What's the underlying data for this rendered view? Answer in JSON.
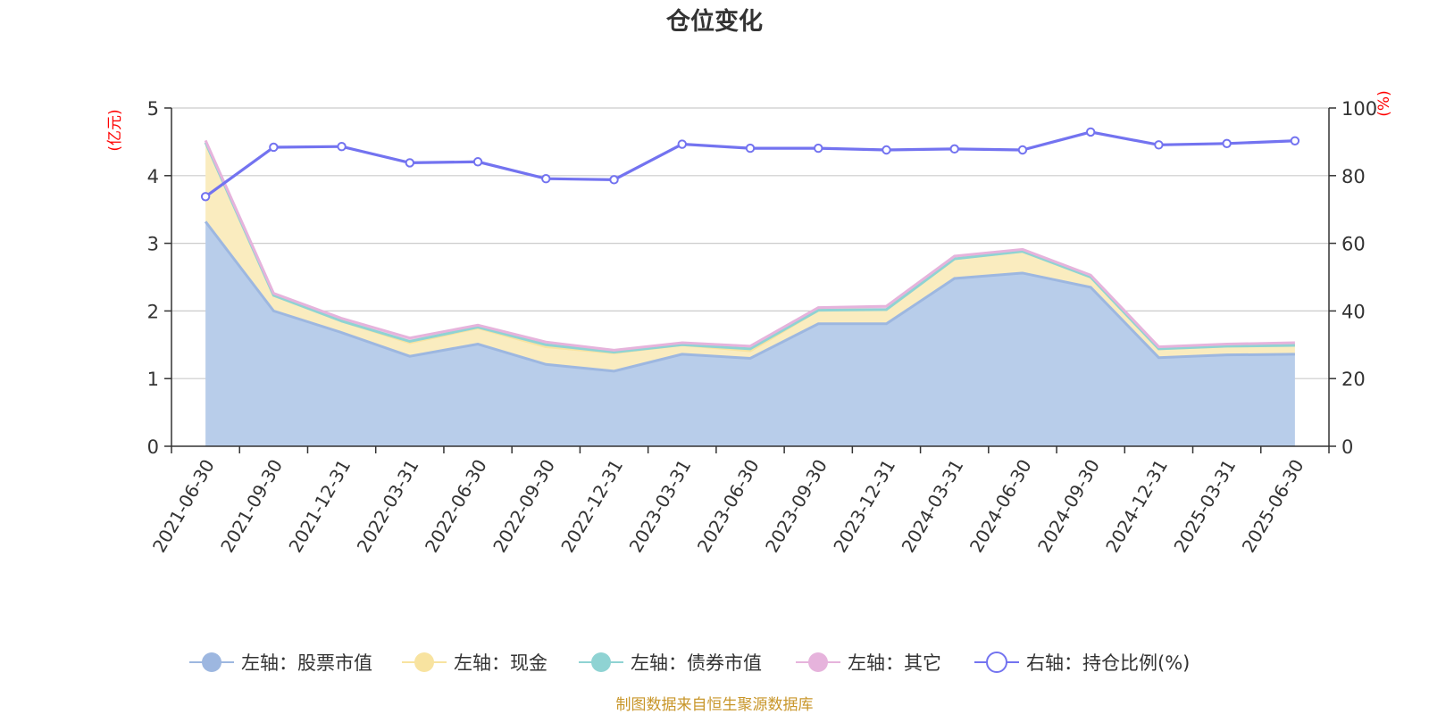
{
  "chart_data": {
    "type": "area",
    "title": "仓位变化",
    "left_axis_unit": "(亿元)",
    "right_axis_unit": "(%)",
    "categories": [
      "2021-06-30",
      "2021-09-30",
      "2021-12-31",
      "2022-03-31",
      "2022-06-30",
      "2022-09-30",
      "2022-12-31",
      "2023-03-31",
      "2023-06-30",
      "2023-09-30",
      "2023-12-31",
      "2024-03-31",
      "2024-06-30",
      "2024-09-30",
      "2024-12-31",
      "2025-03-31",
      "2025-06-30"
    ],
    "ylim_left": [
      0,
      5
    ],
    "yticks_left": [
      "0",
      "1",
      "2",
      "3",
      "4",
      "5"
    ],
    "ylim_right": [
      0,
      100
    ],
    "yticks_right": [
      "0",
      "20",
      "40",
      "60",
      "80",
      "100"
    ],
    "grid": true,
    "stacked": true,
    "series": [
      {
        "name": "左轴：股票市值",
        "axis": "left",
        "kind": "area",
        "color": "#9db7e0",
        "fill": "#b8cdea",
        "values": [
          3.32,
          2.0,
          1.68,
          1.33,
          1.51,
          1.21,
          1.11,
          1.36,
          1.3,
          1.81,
          1.81,
          2.48,
          2.56,
          2.35,
          1.31,
          1.35,
          1.36
        ]
      },
      {
        "name": "左轴：现金",
        "axis": "left",
        "kind": "area",
        "color": "#f8e3a0",
        "fill": "#faecbf",
        "values": [
          1.17,
          0.23,
          0.17,
          0.2,
          0.24,
          0.26,
          0.27,
          0.14,
          0.11,
          0.2,
          0.21,
          0.29,
          0.32,
          0.15,
          0.13,
          0.13,
          0.13
        ]
      },
      {
        "name": "左轴：债券市值",
        "axis": "left",
        "kind": "area",
        "color": "#8fd3d3",
        "fill": "#bfe6e6",
        "values": [
          0.0,
          0.0,
          0.0,
          0.02,
          0.01,
          0.03,
          0.01,
          0.0,
          0.03,
          0.0,
          0.0,
          0.0,
          0.0,
          0.0,
          0.0,
          0.0,
          0.0
        ]
      },
      {
        "name": "左轴：其它",
        "axis": "left",
        "kind": "area",
        "color": "#e6b3dc",
        "fill": "#efcbe8",
        "values": [
          0.03,
          0.03,
          0.04,
          0.05,
          0.03,
          0.04,
          0.03,
          0.03,
          0.04,
          0.04,
          0.05,
          0.04,
          0.03,
          0.03,
          0.03,
          0.03,
          0.04
        ]
      },
      {
        "name": "右轴：持仓比例(%)",
        "axis": "right",
        "kind": "line",
        "color": "#7373f0",
        "values": [
          73.8,
          88.4,
          88.6,
          83.8,
          84.1,
          79.1,
          78.8,
          89.3,
          88.1,
          88.1,
          87.6,
          87.9,
          87.6,
          92.9,
          89.1,
          89.5,
          90.3
        ]
      }
    ]
  },
  "source_text": "制图数据来自恒生聚源数据库"
}
